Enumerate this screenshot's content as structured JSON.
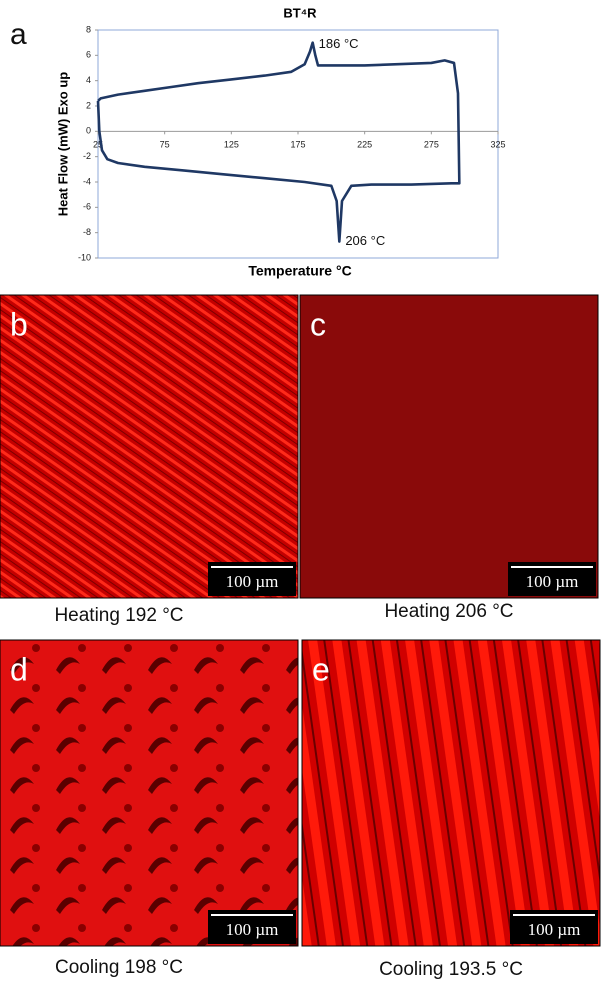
{
  "panel_label": "a",
  "chart_data": {
    "type": "line",
    "title": "BT⁴R",
    "x_label": "Temperature °C",
    "y_label": "Heat Flow (mW) Exo up",
    "xlim": [
      25,
      325
    ],
    "xticks": [
      25,
      75,
      125,
      175,
      225,
      275,
      325
    ],
    "ylim": [
      -10,
      8
    ],
    "yticks": [
      -10,
      -8,
      -6,
      -4,
      -2,
      0,
      2,
      4,
      6,
      8
    ],
    "series": [
      {
        "color": "#1f3864",
        "x": [
          25,
          27,
          40,
          60,
          80,
          100,
          125,
          150,
          170,
          180,
          184,
          186,
          188,
          190,
          200,
          225,
          250,
          275,
          285,
          292,
          295,
          296,
          290,
          260,
          230,
          215,
          208,
          206,
          204,
          200,
          180,
          150,
          120,
          90,
          60,
          40,
          32,
          28,
          26,
          25
        ],
        "values": [
          2.4,
          2.6,
          2.9,
          3.2,
          3.5,
          3.8,
          4.1,
          4.4,
          4.7,
          5.3,
          6.3,
          7.0,
          6.0,
          5.2,
          5.2,
          5.2,
          5.3,
          5.4,
          5.6,
          5.4,
          3.0,
          -4.1,
          -4.1,
          -4.2,
          -4.2,
          -4.3,
          -5.5,
          -8.7,
          -5.5,
          -4.3,
          -4.0,
          -3.7,
          -3.4,
          -3.1,
          -2.8,
          -2.5,
          -2.2,
          -1.5,
          0,
          2.4
        ]
      }
    ],
    "annotations": [
      {
        "text": "186 °C",
        "x": 186,
        "y": 7.0
      },
      {
        "text": "206 °C",
        "x": 206,
        "y": -8.7
      }
    ]
  },
  "panels": [
    {
      "label": "b",
      "scale_bar": "100 µm",
      "caption": "Heating 192 °C"
    },
    {
      "label": "c",
      "scale_bar": "100 µm",
      "caption": "Heating 206 °C"
    },
    {
      "label": "d",
      "scale_bar": "100 µm",
      "caption": "Cooling 198 °C"
    },
    {
      "label": "e",
      "scale_bar": "100 µm",
      "caption": "Cooling 193.5 °C"
    }
  ]
}
